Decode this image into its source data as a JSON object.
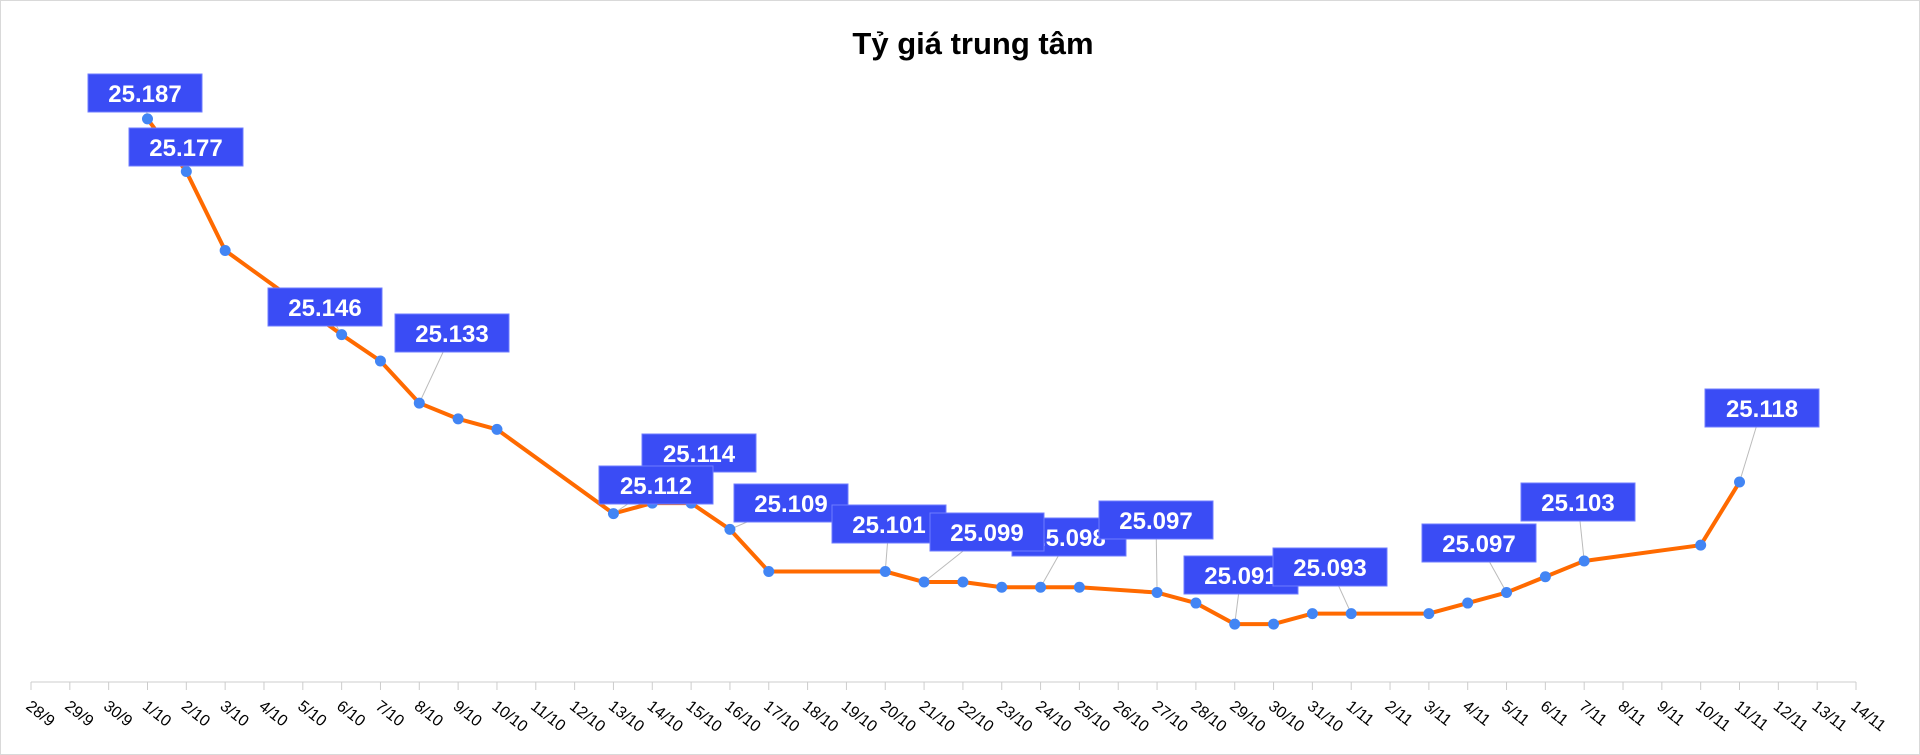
{
  "chart_data": {
    "type": "line",
    "title": "Tỷ giá trung tâm",
    "xlabel": "",
    "ylabel": "",
    "categories": [
      "28/9",
      "29/9",
      "30/9",
      "1/10",
      "2/10",
      "3/10",
      "4/10",
      "5/10",
      "6/10",
      "7/10",
      "8/10",
      "9/10",
      "10/10",
      "11/10",
      "12/10",
      "13/10",
      "14/10",
      "15/10",
      "16/10",
      "17/10",
      "18/10",
      "19/10",
      "20/10",
      "21/10",
      "22/10",
      "23/10",
      "24/10",
      "25/10",
      "26/10",
      "27/10",
      "28/10",
      "29/10",
      "30/10",
      "31/10",
      "1/11",
      "2/11",
      "3/11",
      "4/11",
      "5/11",
      "6/11",
      "7/11",
      "8/11",
      "9/11",
      "10/11",
      "11/11",
      "12/11",
      "13/11",
      "14/11"
    ],
    "ylim": [
      25.08,
      25.198
    ],
    "y_axis_visible": false,
    "grid": false,
    "legend": "none",
    "series": [
      {
        "color": "#ff6a00",
        "marker_color": "#4285f4",
        "points": [
          {
            "x": "1/10",
            "y": 25.187,
            "label": "25.187"
          },
          {
            "x": "2/10",
            "y": 25.177,
            "label": "25.177"
          },
          {
            "x": "3/10",
            "y": 25.162
          },
          {
            "x": "6/10",
            "y": 25.146,
            "label": "25.146"
          },
          {
            "x": "7/10",
            "y": 25.141
          },
          {
            "x": "8/10",
            "y": 25.133,
            "label": "25.133"
          },
          {
            "x": "9/10",
            "y": 25.13
          },
          {
            "x": "10/10",
            "y": 25.128
          },
          {
            "x": "13/10",
            "y": 25.112,
            "label": "25.112"
          },
          {
            "x": "14/10",
            "y": 25.114,
            "label": "25.114"
          },
          {
            "x": "15/10",
            "y": 25.114
          },
          {
            "x": "16/10",
            "y": 25.109,
            "label": "25.109"
          },
          {
            "x": "17/10",
            "y": 25.101
          },
          {
            "x": "20/10",
            "y": 25.101,
            "label": "25.101"
          },
          {
            "x": "21/10",
            "y": 25.099,
            "label": "25.099"
          },
          {
            "x": "22/10",
            "y": 25.099
          },
          {
            "x": "23/10",
            "y": 25.098
          },
          {
            "x": "24/10",
            "y": 25.098,
            "label": "25.098"
          },
          {
            "x": "25/10",
            "y": 25.098
          },
          {
            "x": "27/10",
            "y": 25.097,
            "label": "25.097"
          },
          {
            "x": "28/10",
            "y": 25.095
          },
          {
            "x": "29/10",
            "y": 25.091,
            "label": "25.091"
          },
          {
            "x": "30/10",
            "y": 25.091
          },
          {
            "x": "31/10",
            "y": 25.093
          },
          {
            "x": "1/11",
            "y": 25.093,
            "label": "25.093"
          },
          {
            "x": "3/11",
            "y": 25.093
          },
          {
            "x": "4/11",
            "y": 25.095
          },
          {
            "x": "5/11",
            "y": 25.097,
            "label": "25.097"
          },
          {
            "x": "6/11",
            "y": 25.1
          },
          {
            "x": "7/11",
            "y": 25.103,
            "label": "25.103"
          },
          {
            "x": "10/11",
            "y": 25.106
          },
          {
            "x": "11/11",
            "y": 25.118,
            "label": "25.118"
          }
        ]
      }
    ],
    "label_box_color": "#3a4cf5"
  }
}
